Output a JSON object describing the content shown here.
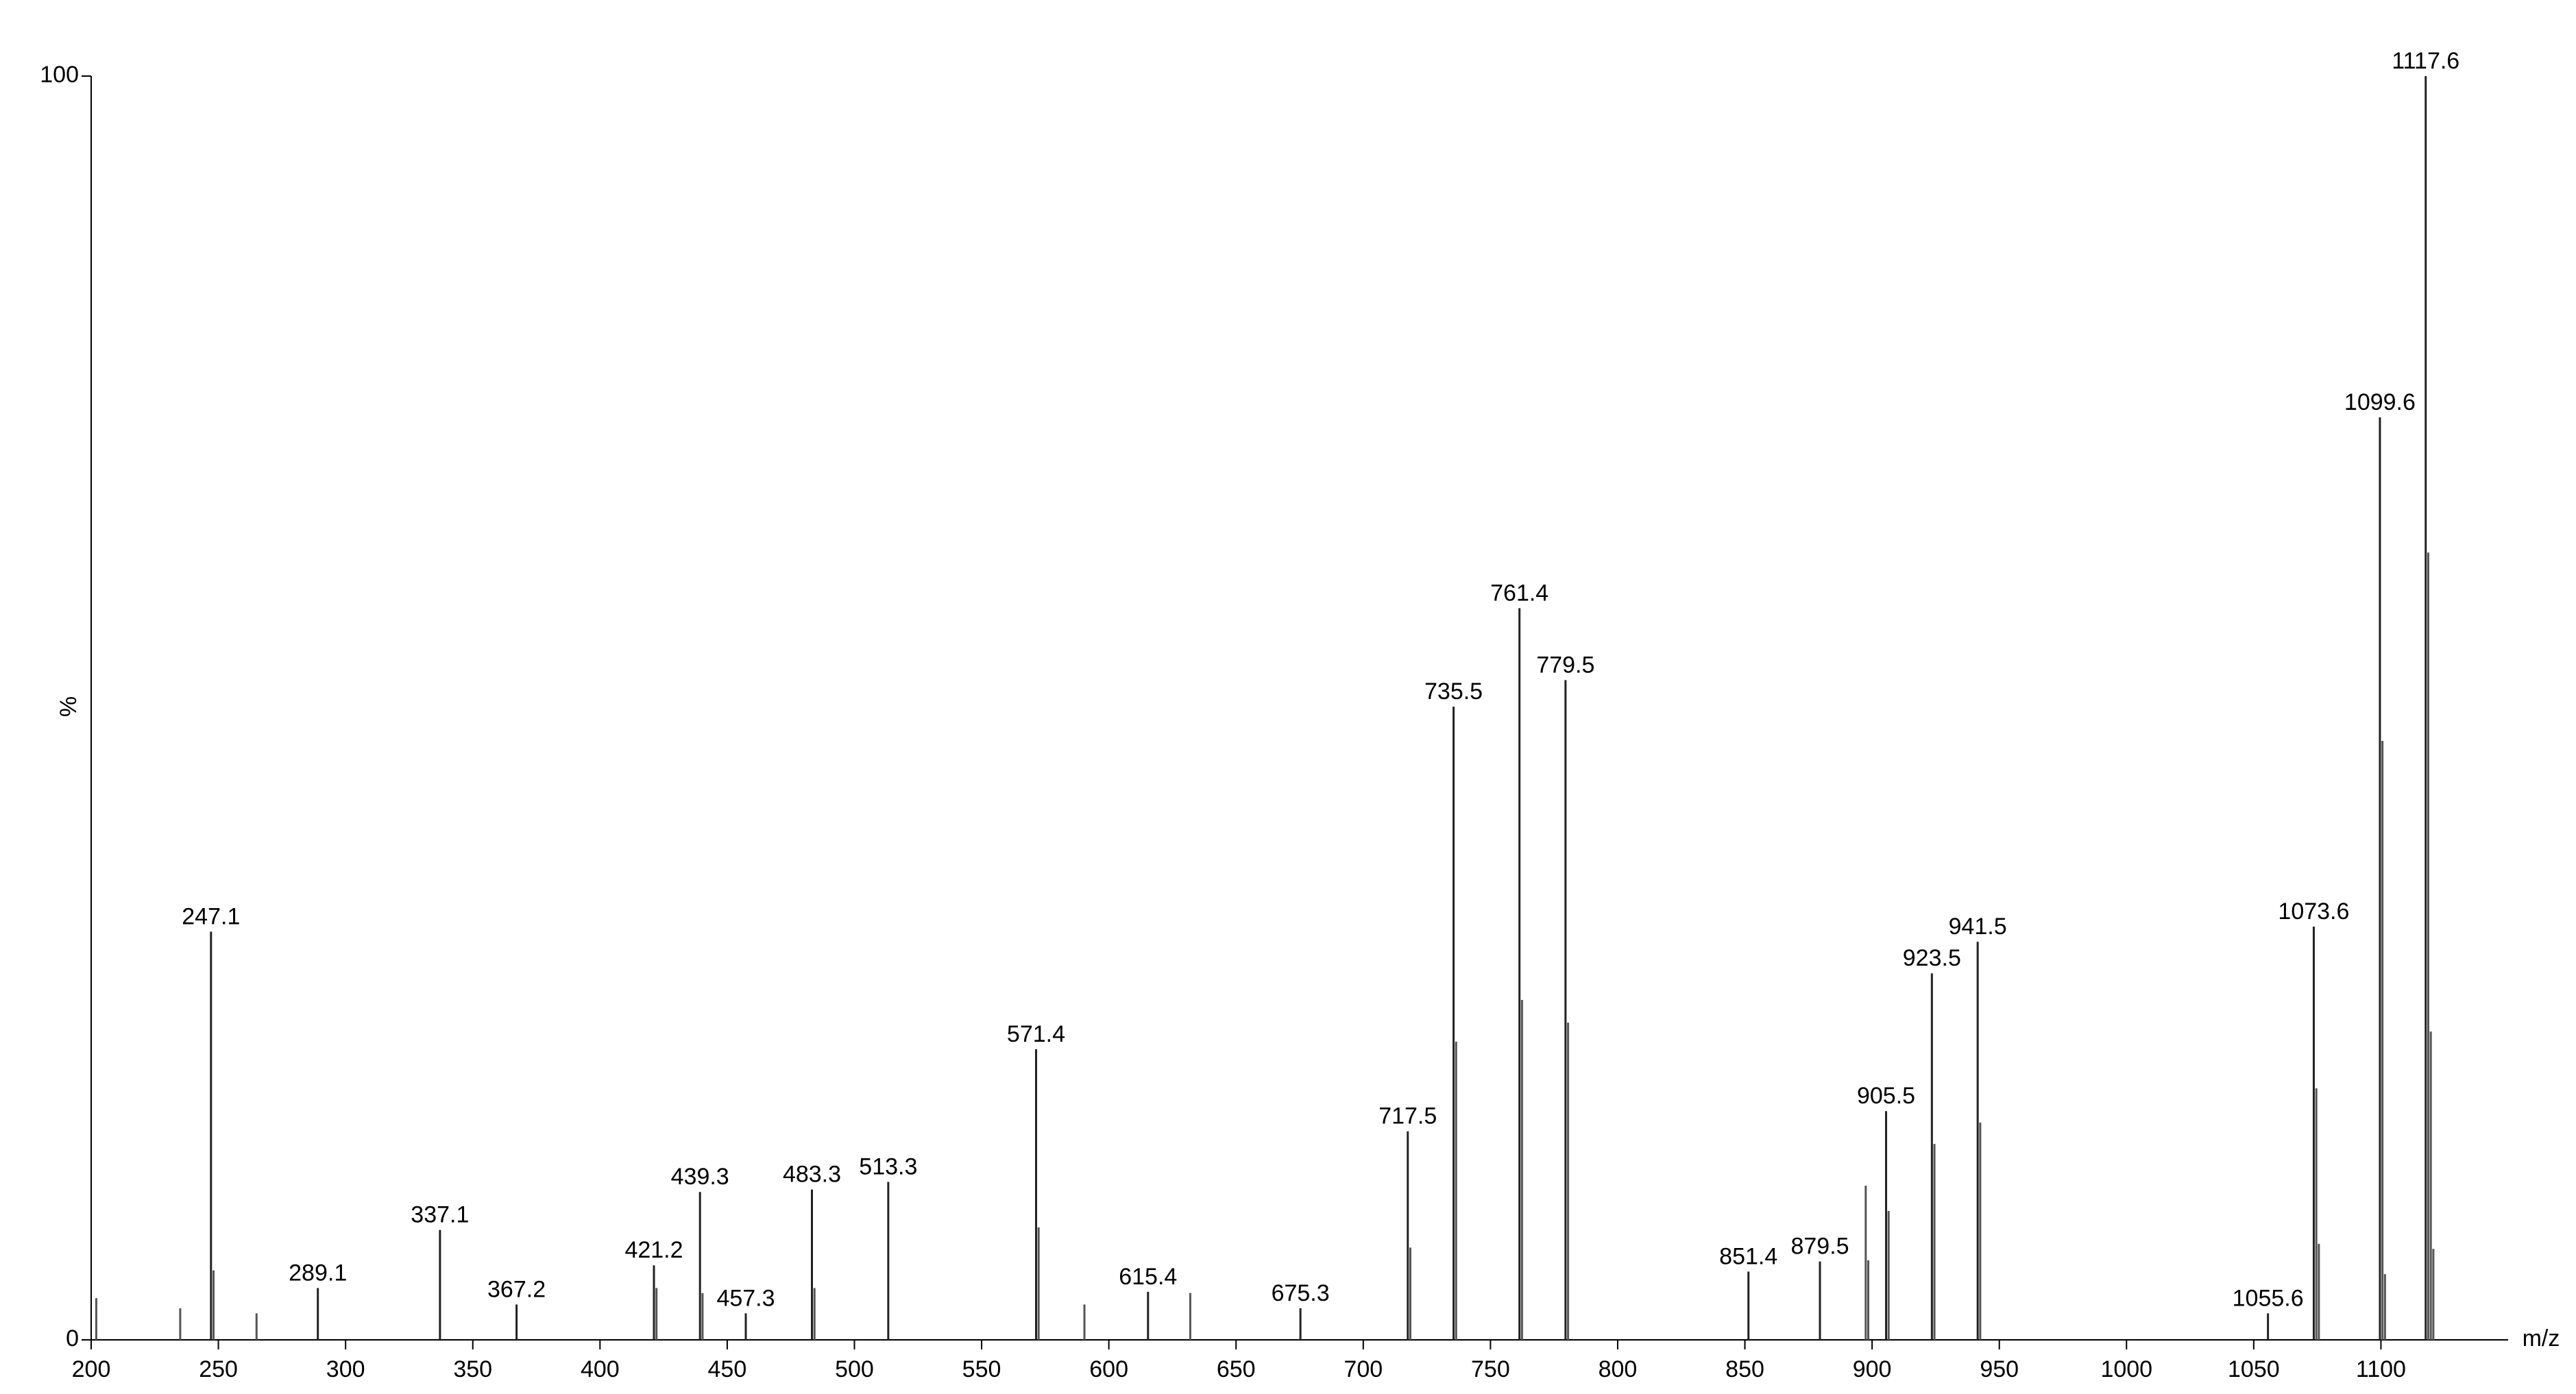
{
  "chart_data": {
    "type": "spectrum",
    "x_label": "m/z",
    "y_label": "%",
    "xlim": [
      200,
      1150
    ],
    "xticks": [
      200,
      250,
      300,
      350,
      400,
      450,
      500,
      550,
      600,
      650,
      700,
      750,
      800,
      850,
      900,
      950,
      1000,
      1050,
      1100
    ],
    "ylim": [
      0,
      100
    ],
    "yticks": [
      0,
      100
    ],
    "series": [
      {
        "color": "#222222",
        "data_labels": true,
        "x": [
          247.1,
          289.1,
          337.1,
          367.2,
          421.2,
          439.3,
          457.3,
          483.3,
          513.3,
          571.4,
          615.4,
          675.3,
          717.5,
          735.5,
          761.4,
          779.5,
          851.4,
          879.5,
          905.5,
          923.5,
          941.5,
          1055.6,
          1073.6,
          1099.6,
          1117.6
        ],
        "values": [
          32.3,
          4.1,
          8.7,
          2.8,
          5.9,
          11.7,
          2.1,
          11.9,
          12.5,
          23.0,
          3.8,
          2.5,
          16.5,
          50.1,
          57.9,
          52.2,
          5.4,
          6.2,
          18.1,
          29.0,
          31.5,
          2.1,
          32.7,
          73.0,
          100
        ]
      },
      {
        "color": "#555555",
        "data_labels": false,
        "x": [
          202,
          235,
          248.1,
          265,
          422.2,
          440.3,
          484.3,
          572.4,
          590.4,
          632,
          718.5,
          736.5,
          762.4,
          780.5,
          897.5,
          898.5,
          906.5,
          924.5,
          942.5,
          1074.6,
          1075.6,
          1100.6,
          1101.6,
          1118.6,
          1119.6,
          1120.6
        ],
        "values": [
          3.3,
          2.5,
          5.5,
          2.1,
          4.1,
          3.7,
          4.1,
          8.9,
          2.8,
          3.7,
          7.3,
          23.6,
          26.9,
          25.1,
          12.2,
          6.3,
          10.2,
          15.5,
          17.2,
          19.9,
          7.6,
          47.4,
          5.2,
          62.3,
          24.4,
          7.2
        ]
      }
    ]
  }
}
